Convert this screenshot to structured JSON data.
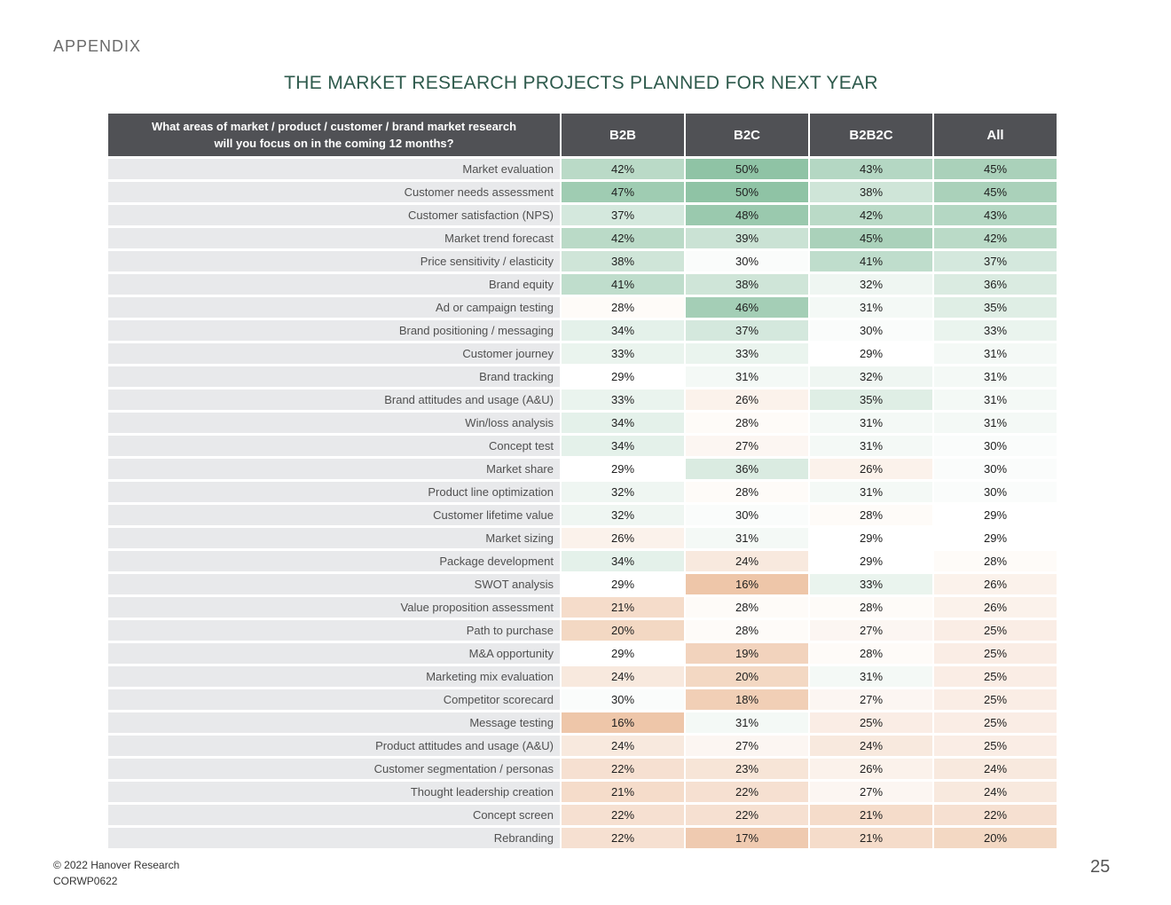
{
  "header": {
    "section": "APPENDIX",
    "title": "THE MARKET RESEARCH PROJECTS PLANNED FOR NEXT YEAR"
  },
  "table": {
    "question_line1": "What areas of market / product / customer / brand market research",
    "question_line2": "will you focus on in the coming 12 months?",
    "columns": [
      "B2B",
      "B2C",
      "B2B2C",
      "All"
    ],
    "rows": [
      {
        "label": "Market evaluation",
        "values": [
          "42%",
          "50%",
          "43%",
          "45%"
        ]
      },
      {
        "label": "Customer needs assessment",
        "values": [
          "47%",
          "50%",
          "38%",
          "45%"
        ]
      },
      {
        "label": "Customer satisfaction (NPS)",
        "values": [
          "37%",
          "48%",
          "42%",
          "43%"
        ]
      },
      {
        "label": "Market trend forecast",
        "values": [
          "42%",
          "39%",
          "45%",
          "42%"
        ]
      },
      {
        "label": "Price sensitivity / elasticity",
        "values": [
          "38%",
          "30%",
          "41%",
          "37%"
        ]
      },
      {
        "label": "Brand equity",
        "values": [
          "41%",
          "38%",
          "32%",
          "36%"
        ]
      },
      {
        "label": "Ad or campaign testing",
        "values": [
          "28%",
          "46%",
          "31%",
          "35%"
        ]
      },
      {
        "label": "Brand positioning / messaging",
        "values": [
          "34%",
          "37%",
          "30%",
          "33%"
        ]
      },
      {
        "label": "Customer journey",
        "values": [
          "33%",
          "33%",
          "29%",
          "31%"
        ]
      },
      {
        "label": "Brand tracking",
        "values": [
          "29%",
          "31%",
          "32%",
          "31%"
        ]
      },
      {
        "label": "Brand attitudes and usage (A&U)",
        "values": [
          "33%",
          "26%",
          "35%",
          "31%"
        ]
      },
      {
        "label": "Win/loss analysis",
        "values": [
          "34%",
          "28%",
          "31%",
          "31%"
        ]
      },
      {
        "label": "Concept test",
        "values": [
          "34%",
          "27%",
          "31%",
          "30%"
        ]
      },
      {
        "label": "Market share",
        "values": [
          "29%",
          "36%",
          "26%",
          "30%"
        ]
      },
      {
        "label": "Product line optimization",
        "values": [
          "32%",
          "28%",
          "31%",
          "30%"
        ]
      },
      {
        "label": "Customer lifetime value",
        "values": [
          "32%",
          "30%",
          "28%",
          "29%"
        ]
      },
      {
        "label": "Market sizing",
        "values": [
          "26%",
          "31%",
          "29%",
          "29%"
        ]
      },
      {
        "label": "Package development",
        "values": [
          "34%",
          "24%",
          "29%",
          "28%"
        ]
      },
      {
        "label": "SWOT analysis",
        "values": [
          "29%",
          "16%",
          "33%",
          "26%"
        ]
      },
      {
        "label": "Value proposition assessment",
        "values": [
          "21%",
          "28%",
          "28%",
          "26%"
        ]
      },
      {
        "label": "Path to purchase",
        "values": [
          "20%",
          "28%",
          "27%",
          "25%"
        ]
      },
      {
        "label": "M&A opportunity",
        "values": [
          "29%",
          "19%",
          "28%",
          "25%"
        ]
      },
      {
        "label": "Marketing mix evaluation",
        "values": [
          "24%",
          "20%",
          "31%",
          "25%"
        ]
      },
      {
        "label": "Competitor scorecard",
        "values": [
          "30%",
          "18%",
          "27%",
          "25%"
        ]
      },
      {
        "label": "Message testing",
        "values": [
          "16%",
          "31%",
          "25%",
          "25%"
        ]
      },
      {
        "label": "Product attitudes and usage (A&U)",
        "values": [
          "24%",
          "27%",
          "24%",
          "25%"
        ]
      },
      {
        "label": "Customer segmentation / personas",
        "values": [
          "22%",
          "23%",
          "26%",
          "24%"
        ]
      },
      {
        "label": "Thought leadership creation",
        "values": [
          "21%",
          "22%",
          "27%",
          "24%"
        ]
      },
      {
        "label": "Concept screen",
        "values": [
          "22%",
          "22%",
          "21%",
          "22%"
        ]
      },
      {
        "label": "Rebranding",
        "values": [
          "22%",
          "17%",
          "21%",
          "20%"
        ]
      }
    ]
  },
  "colors": {
    "high": "#8fc3a5",
    "mid": "#ffffff",
    "low": "#eec6a9"
  },
  "footer": {
    "copyright": "© 2022 Hanover Research",
    "code": "CORWP0622",
    "page": "25"
  }
}
